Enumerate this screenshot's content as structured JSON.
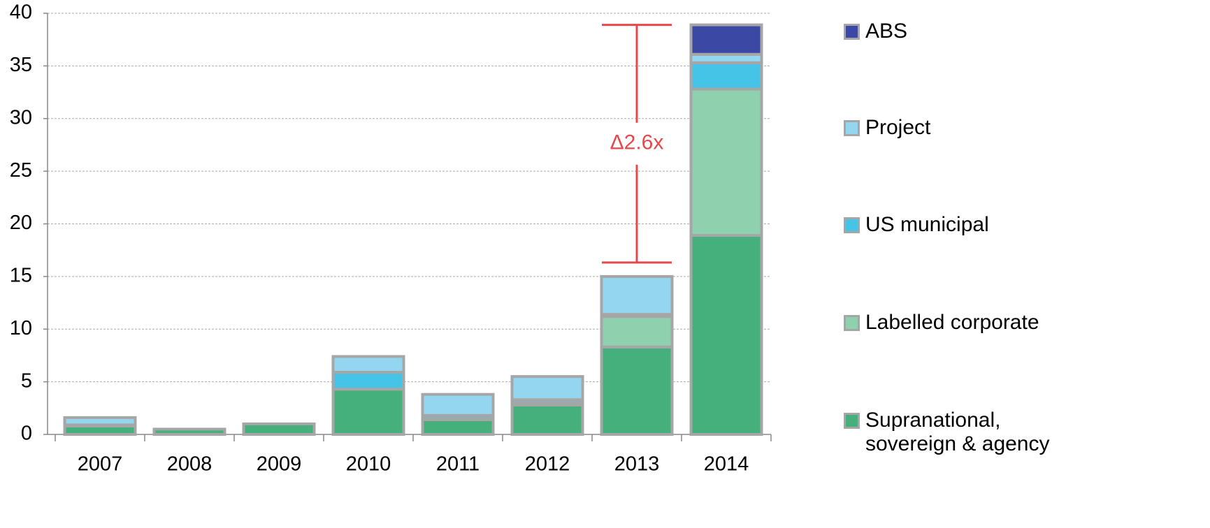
{
  "chart_data": {
    "type": "stacked_bar",
    "annotation": "Δ2.6x",
    "categories": [
      "2007",
      "2008",
      "2009",
      "2010",
      "2011",
      "2012",
      "2013",
      "2014"
    ],
    "series": [
      {
        "name": "Supranational, sovereign & agency",
        "color": "#45b07c",
        "values": [
          0.8,
          0.5,
          1.0,
          4.3,
          1.4,
          2.8,
          8.3,
          18.9
        ]
      },
      {
        "name": "Labelled corporate",
        "color": "#8fd0ae",
        "values": [
          0,
          0,
          0,
          0,
          0.1,
          0.2,
          2.9,
          13.9
        ]
      },
      {
        "name": "US municipal",
        "color": "#45c4e8",
        "values": [
          0.1,
          0,
          0,
          1.6,
          0.3,
          0.3,
          0.2,
          2.5
        ]
      },
      {
        "name": "Project",
        "color": "#94d6f0",
        "values": [
          0.7,
          0,
          0,
          1.5,
          2.0,
          2.2,
          3.6,
          0.8
        ]
      },
      {
        "name": "ABS",
        "color": "#3b48a4",
        "values": [
          0,
          0,
          0,
          0,
          0,
          0,
          0,
          2.8
        ]
      }
    ],
    "ylim": [
      0,
      40
    ],
    "yticks": [
      0,
      5,
      10,
      15,
      20,
      25,
      30,
      35,
      40
    ],
    "grid": true,
    "legend": "right"
  }
}
